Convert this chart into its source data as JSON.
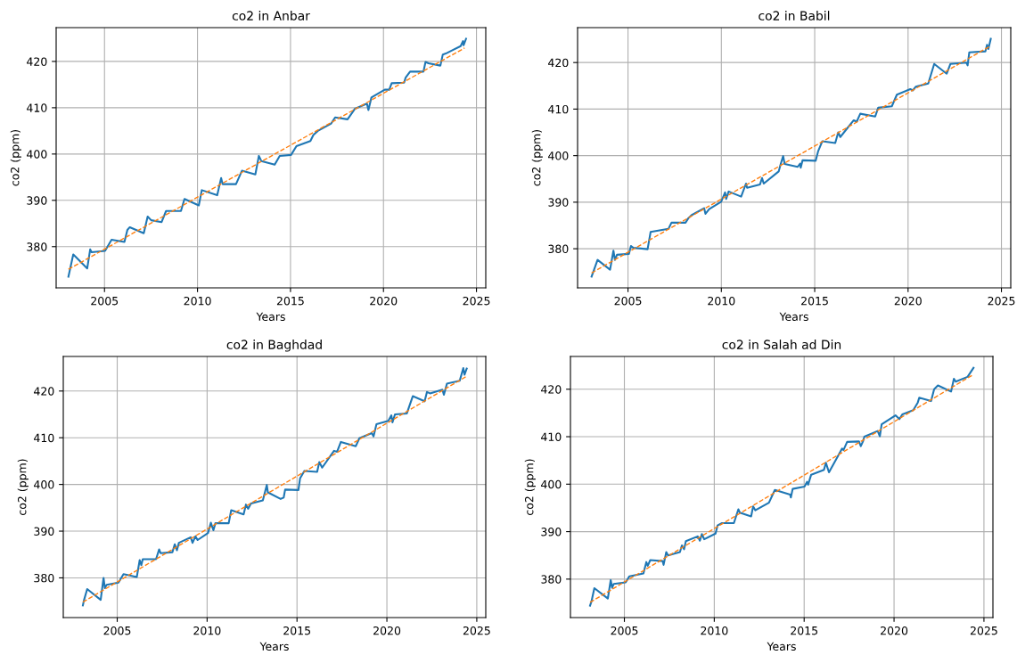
{
  "chart_data": [
    {
      "type": "line",
      "title": "co2 in Anbar",
      "xlabel": "Years",
      "ylabel": "co2 (ppm)",
      "xlim": [
        2002.4,
        2025.5
      ],
      "ylim": [
        371.1,
        427.3
      ],
      "xticks": [
        2005,
        2010,
        2015,
        2020,
        2025
      ],
      "yticks": [
        380,
        390,
        400,
        410,
        420
      ],
      "grid": true,
      "series": [
        {
          "color": "#1f77b4",
          "line_style": "solid",
          "x": [
            2003.06,
            2003.32,
            2004.07,
            2004.23,
            2004.31,
            2005.03,
            2005.38,
            2006.07,
            2006.23,
            2006.36,
            2007.11,
            2007.32,
            2007.51,
            2008.07,
            2008.31,
            2009.11,
            2009.3,
            2010.07,
            2010.23,
            2011.06,
            2011.27,
            2011.35,
            2012.07,
            2012.39,
            2013.11,
            2013.3,
            2013.43,
            2014.15,
            2014.42,
            2015.03,
            2015.32,
            2016.07,
            2016.23,
            2016.47,
            2017.19,
            2017.4,
            2018.07,
            2018.47,
            2019.11,
            2019.19,
            2019.35,
            2020.07,
            2020.31,
            2020.44,
            2021.11,
            2021.19,
            2021.43,
            2022.15,
            2022.26,
            2022.42,
            2023.06,
            2023.19,
            2023.35,
            2024.15,
            2024.28,
            2024.31,
            2024.44
          ],
          "values": [
            373.5,
            378.3,
            375.3,
            379.4,
            378.8,
            379.1,
            381.5,
            381.0,
            383.6,
            384.2,
            382.9,
            386.5,
            385.7,
            385.3,
            387.7,
            387.7,
            390.3,
            388.9,
            392.2,
            391.1,
            394.8,
            393.5,
            393.5,
            396.4,
            395.6,
            399.6,
            398.5,
            397.7,
            399.6,
            399.8,
            401.7,
            402.8,
            404.1,
            405.0,
            406.6,
            407.9,
            407.5,
            409.8,
            410.9,
            409.5,
            412.2,
            413.9,
            413.9,
            415.3,
            415.4,
            416.5,
            417.8,
            417.8,
            419.9,
            419.6,
            419.1,
            421.5,
            421.7,
            423.3,
            424.4,
            423.5,
            424.9
          ]
        },
        {
          "color": "#ff7f0e",
          "line_style": "dashed",
          "x": [
            2003.06,
            2024.36
          ],
          "values": [
            375.1,
            422.9
          ]
        }
      ]
    },
    {
      "type": "line",
      "title": "co2 in Babil",
      "xlabel": "Years",
      "ylabel": "co2 (ppm)",
      "xlim": [
        2002.3,
        2025.5
      ],
      "ylim": [
        371.6,
        427.5
      ],
      "xticks": [
        2005,
        2010,
        2015,
        2020,
        2025
      ],
      "yticks": [
        380,
        390,
        400,
        410,
        420
      ],
      "grid": true,
      "series": [
        {
          "color": "#1f77b4",
          "line_style": "solid",
          "x": [
            2003.05,
            2003.37,
            2004.04,
            2004.22,
            2004.3,
            2004.41,
            2005.05,
            2005.16,
            2005.29,
            2006.05,
            2006.21,
            2007.17,
            2007.33,
            2008.08,
            2008.24,
            2008.4,
            2009.08,
            2009.15,
            2009.35,
            2009.99,
            2010.2,
            2010.26,
            2010.39,
            2011.06,
            2011.32,
            2011.38,
            2012.07,
            2012.18,
            2012.27,
            2013.07,
            2013.18,
            2013.31,
            2013.39,
            2014.09,
            2014.22,
            2014.25,
            2014.35,
            2015.05,
            2015.18,
            2015.41,
            2016.1,
            2016.26,
            2016.37,
            2017.09,
            2017.25,
            2017.44,
            2018.24,
            2018.4,
            2019.13,
            2019.4,
            2020.12,
            2020.25,
            2020.41,
            2021.08,
            2021.4,
            2022.07,
            2022.27,
            2023.12,
            2023.19,
            2023.28,
            2024.14,
            2024.23,
            2024.3,
            2024.43
          ],
          "values": [
            374.0,
            377.6,
            375.5,
            379.6,
            377.6,
            378.7,
            378.9,
            380.6,
            380.2,
            379.9,
            383.6,
            384.3,
            385.6,
            385.6,
            386.6,
            387.2,
            388.7,
            387.5,
            388.5,
            390.1,
            392.1,
            390.7,
            392.3,
            391.2,
            394.0,
            393.1,
            393.8,
            395.2,
            394.0,
            396.6,
            398.2,
            399.9,
            398.2,
            397.6,
            398.3,
            397.4,
            399.0,
            398.9,
            400.9,
            403.1,
            402.7,
            405.0,
            404.0,
            407.6,
            407.3,
            409.0,
            408.4,
            410.3,
            410.6,
            413.1,
            414.3,
            414.0,
            414.8,
            415.5,
            419.7,
            417.6,
            419.7,
            420.0,
            419.4,
            422.2,
            422.4,
            423.8,
            422.9,
            425.1
          ]
        },
        {
          "color": "#ff7f0e",
          "line_style": "dashed",
          "x": [
            2003.05,
            2024.39
          ],
          "values": [
            374.8,
            423.5
          ]
        }
      ]
    },
    {
      "type": "line",
      "title": "co2 in Baghdad",
      "xlabel": "Years",
      "ylabel": "co2 (ppm)",
      "xlim": [
        2002.0,
        2025.5
      ],
      "ylim": [
        371.5,
        427.4
      ],
      "xticks": [
        2005,
        2010,
        2015,
        2020,
        2025
      ],
      "yticks": [
        380,
        390,
        400,
        410,
        420
      ],
      "grid": true,
      "series": [
        {
          "color": "#1f77b4",
          "line_style": "solid",
          "x": [
            2003.09,
            2003.15,
            2003.33,
            2004.08,
            2004.24,
            2004.31,
            2004.41,
            2005.07,
            2005.35,
            2006.09,
            2006.25,
            2006.34,
            2006.42,
            2007.16,
            2007.33,
            2007.41,
            2008.07,
            2008.2,
            2008.32,
            2008.43,
            2009.09,
            2009.19,
            2009.35,
            2009.47,
            2010.05,
            2010.21,
            2010.35,
            2010.46,
            2011.2,
            2011.34,
            2012.03,
            2012.16,
            2012.28,
            2012.44,
            2013.1,
            2013.32,
            2013.38,
            2014.09,
            2014.26,
            2014.34,
            2015.08,
            2015.17,
            2015.41,
            2016.12,
            2016.24,
            2016.4,
            2017.06,
            2017.23,
            2017.44,
            2018.27,
            2018.47,
            2019.16,
            2019.26,
            2019.42,
            2020.08,
            2020.25,
            2020.31,
            2020.45,
            2021.11,
            2021.44,
            2022.1,
            2022.23,
            2022.4,
            2023.09,
            2023.17,
            2023.34,
            2024.05,
            2024.25,
            2024.32,
            2024.44
          ],
          "values": [
            374.1,
            375.2,
            377.6,
            375.3,
            380.0,
            377.8,
            378.5,
            379.0,
            380.8,
            380.2,
            383.8,
            382.7,
            384.0,
            384.0,
            386.1,
            385.3,
            385.5,
            387.2,
            385.9,
            387.5,
            388.7,
            387.5,
            388.9,
            388.1,
            389.6,
            391.8,
            390.2,
            391.7,
            391.7,
            394.5,
            393.6,
            395.7,
            394.8,
            395.9,
            396.6,
            399.9,
            398.3,
            396.9,
            397.2,
            398.9,
            398.8,
            401.3,
            402.9,
            402.7,
            404.8,
            403.6,
            407.2,
            407.0,
            409.1,
            408.2,
            409.9,
            411.0,
            410.3,
            412.9,
            413.6,
            414.8,
            413.3,
            415.0,
            415.2,
            418.9,
            417.8,
            419.8,
            419.5,
            420.3,
            419.2,
            421.6,
            422.2,
            424.9,
            423.5,
            424.8
          ]
        },
        {
          "color": "#ff7f0e",
          "line_style": "dashed",
          "x": [
            2003.09,
            2024.41
          ],
          "values": [
            374.8,
            423.1
          ]
        }
      ]
    },
    {
      "type": "line",
      "title": "co2 in Salah ad Din",
      "xlabel": "Years",
      "ylabel": "co2 (ppm)",
      "xlim": [
        2002.0,
        2025.5
      ],
      "ylim": [
        371.9,
        426.9
      ],
      "xticks": [
        2005,
        2010,
        2015,
        2020,
        2025
      ],
      "yticks": [
        380,
        390,
        400,
        410,
        420
      ],
      "grid": true,
      "series": [
        {
          "color": "#1f77b4",
          "line_style": "solid",
          "x": [
            2003.09,
            2003.17,
            2003.33,
            2004.08,
            2004.24,
            2004.32,
            2004.41,
            2005.07,
            2005.28,
            2006.06,
            2006.22,
            2006.3,
            2006.44,
            2007.13,
            2007.18,
            2007.33,
            2007.43,
            2008.09,
            2008.2,
            2008.32,
            2008.42,
            2009.08,
            2009.2,
            2009.31,
            2009.44,
            2010.07,
            2010.18,
            2010.43,
            2011.09,
            2011.34,
            2011.42,
            2012.05,
            2012.16,
            2012.28,
            2013.04,
            2013.37,
            2014.22,
            2014.26,
            2014.36,
            2015.02,
            2015.16,
            2015.22,
            2015.39,
            2016.1,
            2016.21,
            2016.38,
            2017.11,
            2017.19,
            2017.39,
            2018.05,
            2018.15,
            2018.27,
            2018.35,
            2019.09,
            2019.21,
            2019.31,
            2020.08,
            2020.3,
            2020.46,
            2021.07,
            2021.32,
            2021.4,
            2022.06,
            2022.23,
            2022.44,
            2023.17,
            2023.33,
            2023.43,
            2024.09,
            2024.26,
            2024.42
          ],
          "values": [
            374.4,
            375.3,
            378.1,
            375.9,
            379.8,
            378.2,
            379.0,
            379.3,
            380.6,
            381.2,
            383.6,
            382.8,
            384.0,
            383.8,
            383.0,
            385.7,
            385.0,
            385.7,
            387.1,
            386.3,
            388.0,
            389.0,
            388.1,
            389.5,
            388.4,
            389.6,
            391.3,
            391.8,
            391.8,
            394.7,
            394.0,
            393.2,
            395.3,
            394.5,
            396.1,
            398.8,
            397.8,
            397.2,
            399.0,
            399.5,
            400.5,
            399.9,
            402.0,
            403.0,
            404.5,
            402.5,
            407.5,
            407.2,
            408.9,
            409.0,
            408.0,
            409.0,
            410.0,
            411.2,
            410.1,
            412.6,
            414.5,
            413.7,
            414.7,
            415.6,
            417.2,
            418.2,
            417.5,
            420.0,
            420.8,
            419.5,
            422.2,
            421.6,
            422.6,
            423.6,
            424.5
          ]
        },
        {
          "color": "#ff7f0e",
          "line_style": "dashed",
          "x": [
            2003.09,
            2024.42
          ],
          "values": [
            375.1,
            423.1
          ]
        }
      ]
    }
  ]
}
